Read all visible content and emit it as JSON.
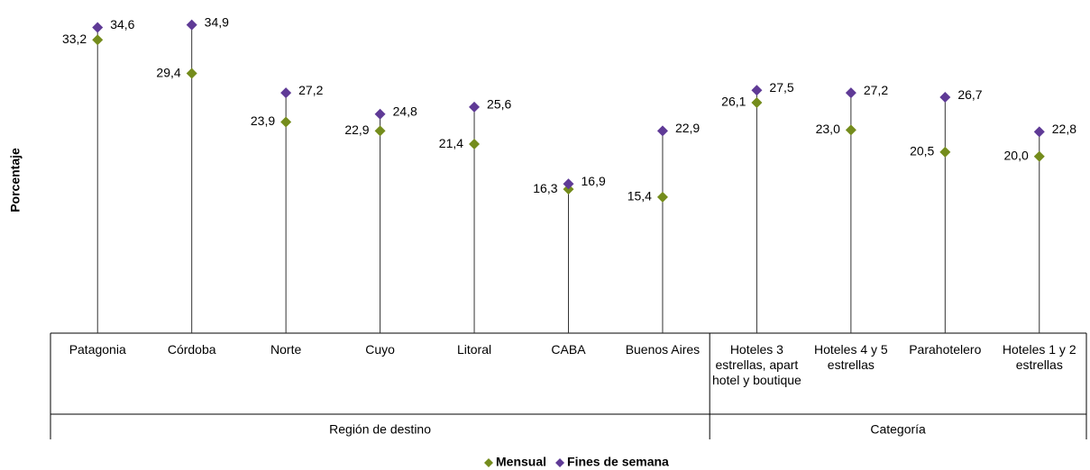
{
  "chart_data": {
    "type": "dot",
    "y_label": "Porcentaje",
    "groups": [
      {
        "name": "Región de destino",
        "categories": [
          "Patagonia",
          "Córdoba",
          "Norte",
          "Cuyo",
          "Litoral",
          "CABA",
          "Buenos Aires"
        ]
      },
      {
        "name": "Categoría",
        "categories": [
          "Hoteles 3 estrellas, apart hotel y boutique",
          "Hoteles 4 y 5 estrellas",
          "Parahotelero",
          "Hoteles 1 y 2 estrellas"
        ]
      }
    ],
    "ylim": [
      0,
      37
    ],
    "series": [
      {
        "name": "Mensual",
        "color": "#748c1c",
        "values": [
          33.2,
          29.4,
          23.9,
          22.9,
          21.4,
          16.3,
          15.4,
          26.1,
          23.0,
          20.5,
          20.0
        ],
        "value_labels": [
          "33,2",
          "29,4",
          "23,9",
          "22,9",
          "21,4",
          "16,3",
          "15,4",
          "26,1",
          "23,0",
          "20,5",
          "20,0"
        ]
      },
      {
        "name": "Fines de semana",
        "color": "#5f3a96",
        "values": [
          34.6,
          34.9,
          27.2,
          24.8,
          25.6,
          16.9,
          22.9,
          27.5,
          27.2,
          26.7,
          22.8
        ],
        "value_labels": [
          "34,6",
          "34,9",
          "27,2",
          "24,8",
          "25,6",
          "16,9",
          "22,9",
          "27,5",
          "27,2",
          "26,7",
          "22,8"
        ]
      }
    ],
    "legend": "bottom"
  }
}
